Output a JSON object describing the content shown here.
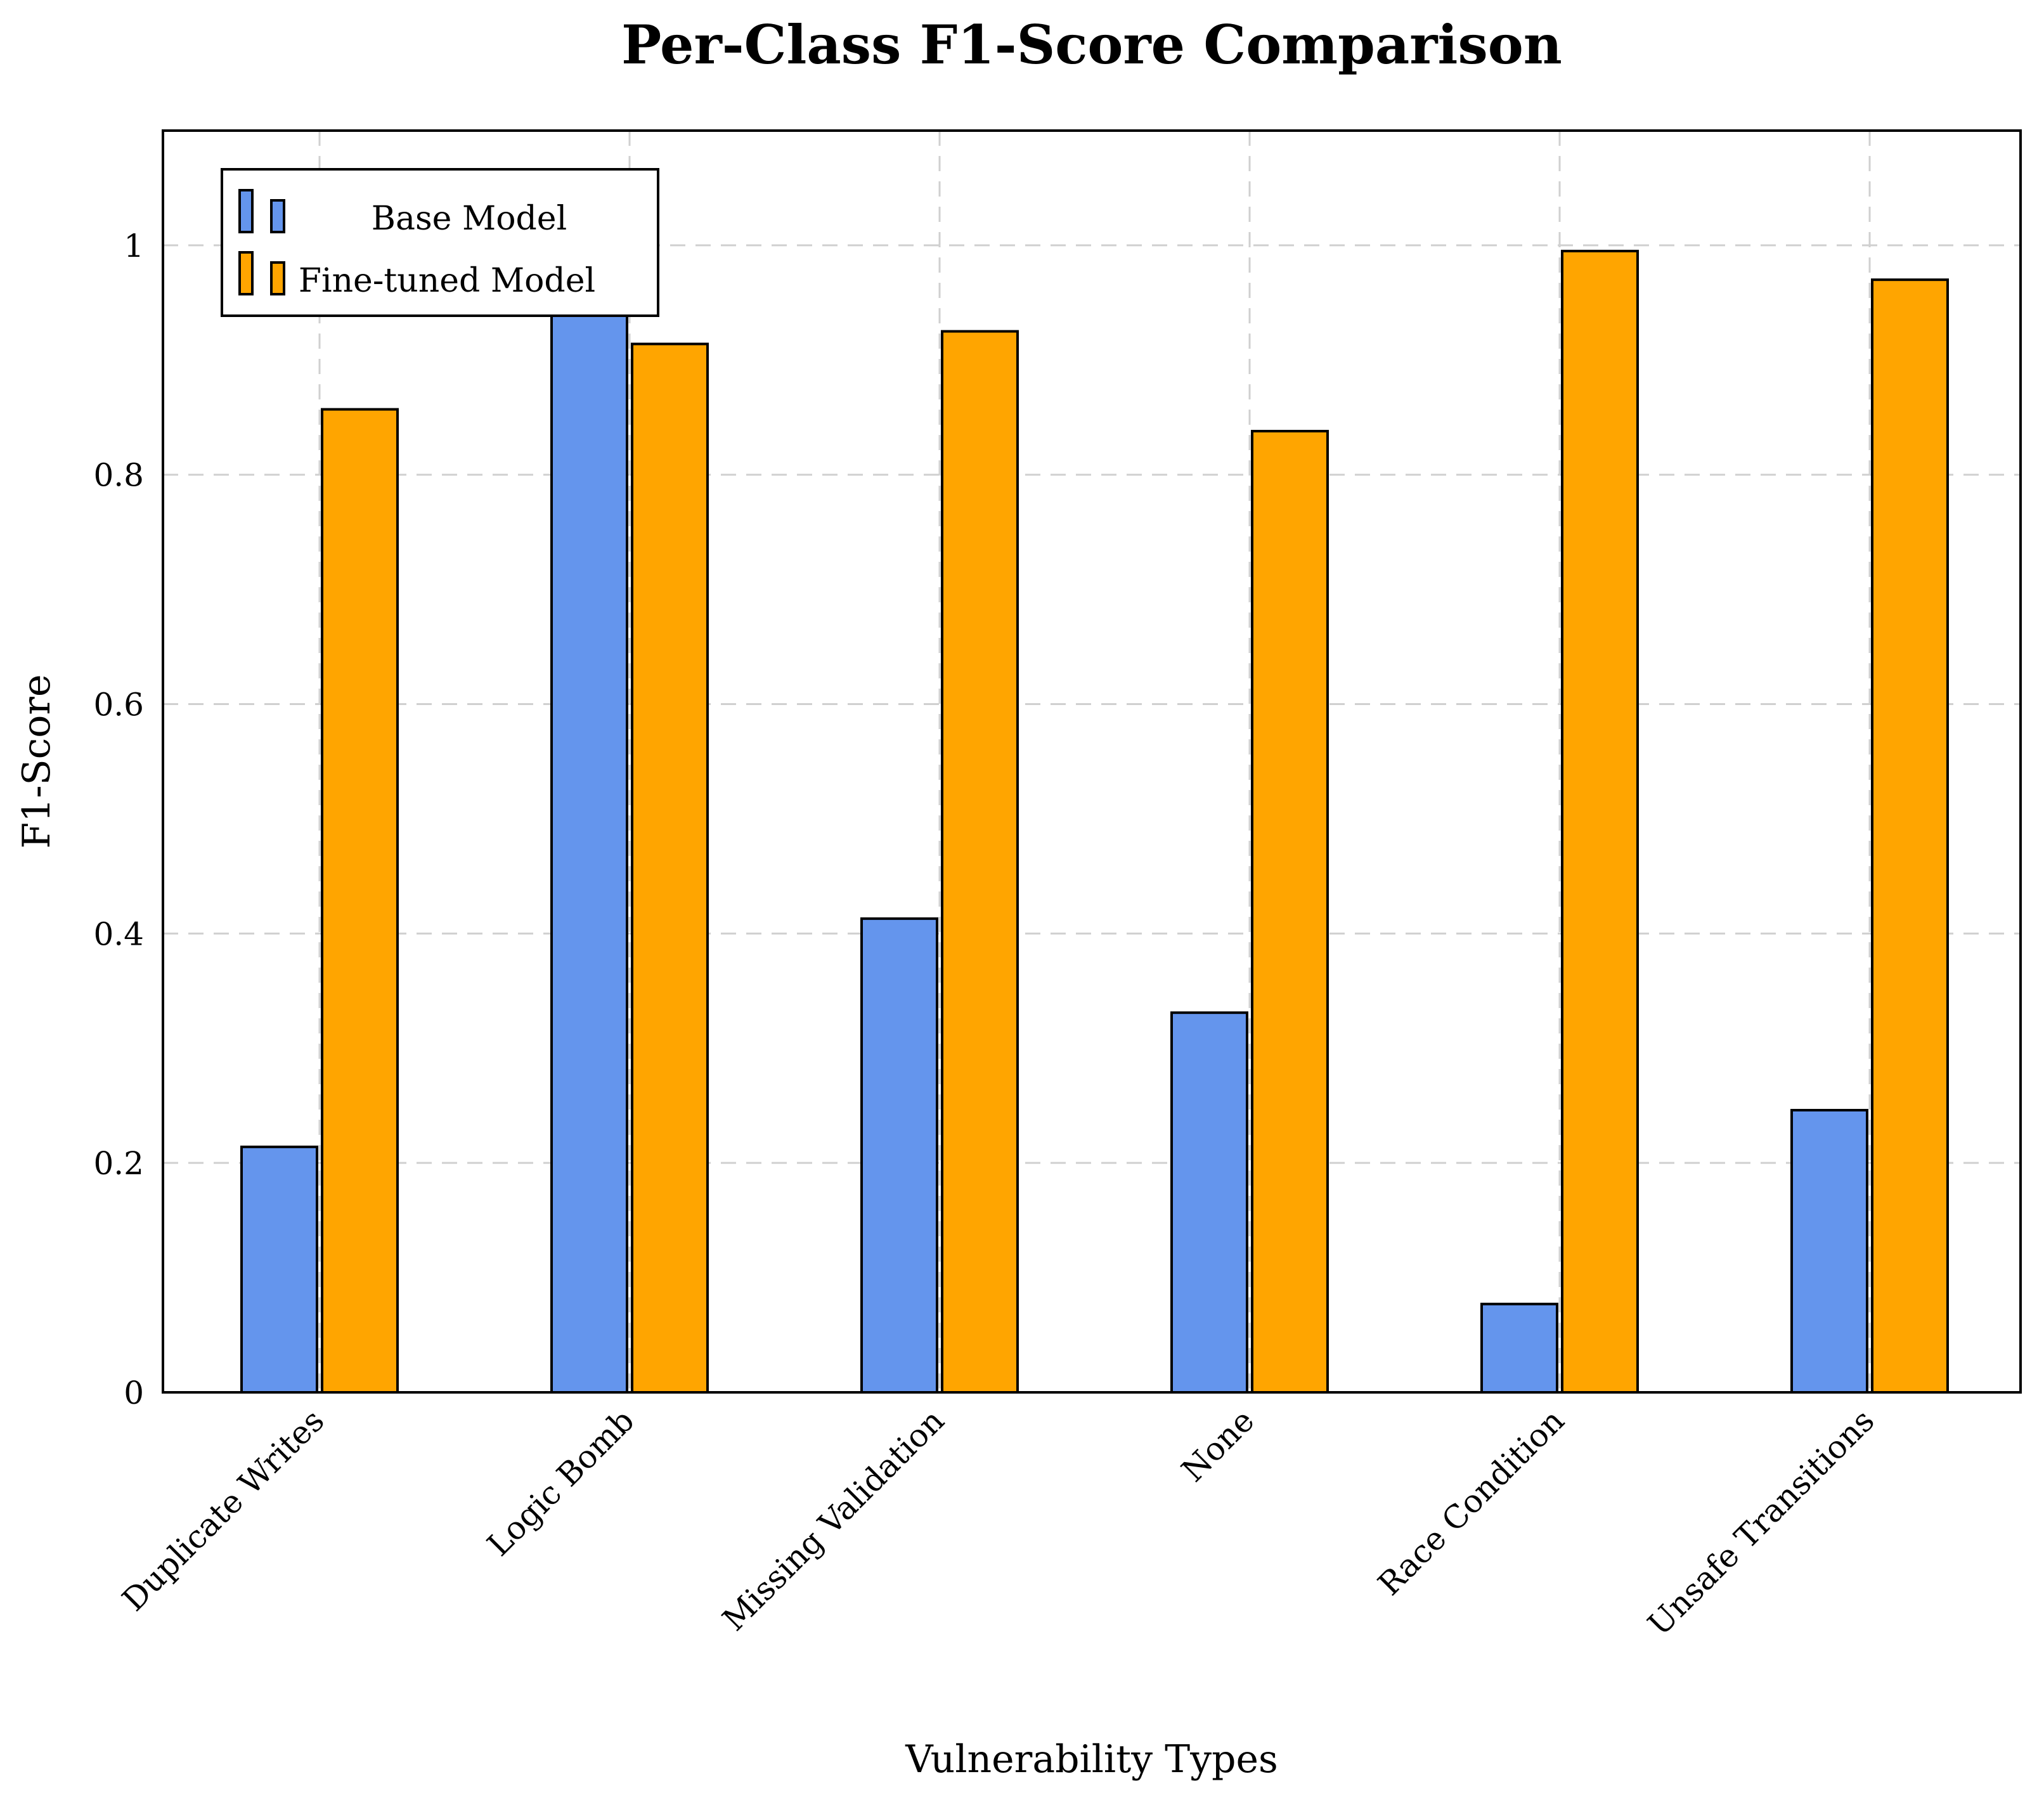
{
  "chart_data": {
    "type": "bar",
    "title": "Per-Class F1-Score Comparison",
    "xlabel": "Vulnerability Types",
    "ylabel": "F1-Score",
    "ylim": [
      0,
      1.1
    ],
    "yticks": [
      0,
      0.2,
      0.4,
      0.6,
      0.8,
      1
    ],
    "ytick_labels": [
      "0",
      "0.2",
      "0.4",
      "0.6",
      "0.8",
      "1"
    ],
    "grid": true,
    "legend_position": "top-left",
    "categories": [
      "Duplicate Writes",
      "Logic Bomb",
      "Missing Validation",
      "None",
      "Race Condition",
      "Unsafe Transitions"
    ],
    "series": [
      {
        "name": "Base Model",
        "color": "#6495ED",
        "values": [
          0.214,
          0.97,
          0.413,
          0.331,
          0.077,
          0.246
        ]
      },
      {
        "name": "Fine-tuned Model",
        "color": "#FFA500",
        "values": [
          0.857,
          0.914,
          0.925,
          0.838,
          0.995,
          0.97
        ]
      }
    ]
  }
}
